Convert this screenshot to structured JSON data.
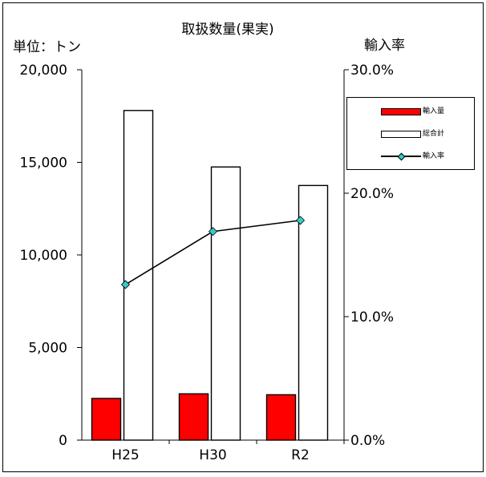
{
  "chart_data": {
    "type": "bar",
    "title": "取扱数量(果実)",
    "ylabel": "単位：トン",
    "y2label": "輸入率",
    "categories": [
      "H25",
      "H30",
      "R2"
    ],
    "ylim": [
      0,
      20000
    ],
    "y2lim": [
      0,
      0.3
    ],
    "yticks": [
      "0",
      "5,000",
      "10,000",
      "15,000",
      "20,000"
    ],
    "y2ticks": [
      "0.0%",
      "10.0%",
      "20.0%",
      "30.0%"
    ],
    "grid": false,
    "legend_position": "right",
    "series": [
      {
        "name": "輸入量",
        "type": "bar",
        "color": "#ff0000",
        "values": [
          2250,
          2500,
          2450
        ]
      },
      {
        "name": "総合計",
        "type": "bar",
        "color": "#ffffff",
        "values": [
          17800,
          14750,
          13750
        ]
      },
      {
        "name": "輸入率",
        "type": "line",
        "axis": "right",
        "marker_color": "#33cccc",
        "values": [
          0.126,
          0.169,
          0.178
        ]
      }
    ]
  }
}
